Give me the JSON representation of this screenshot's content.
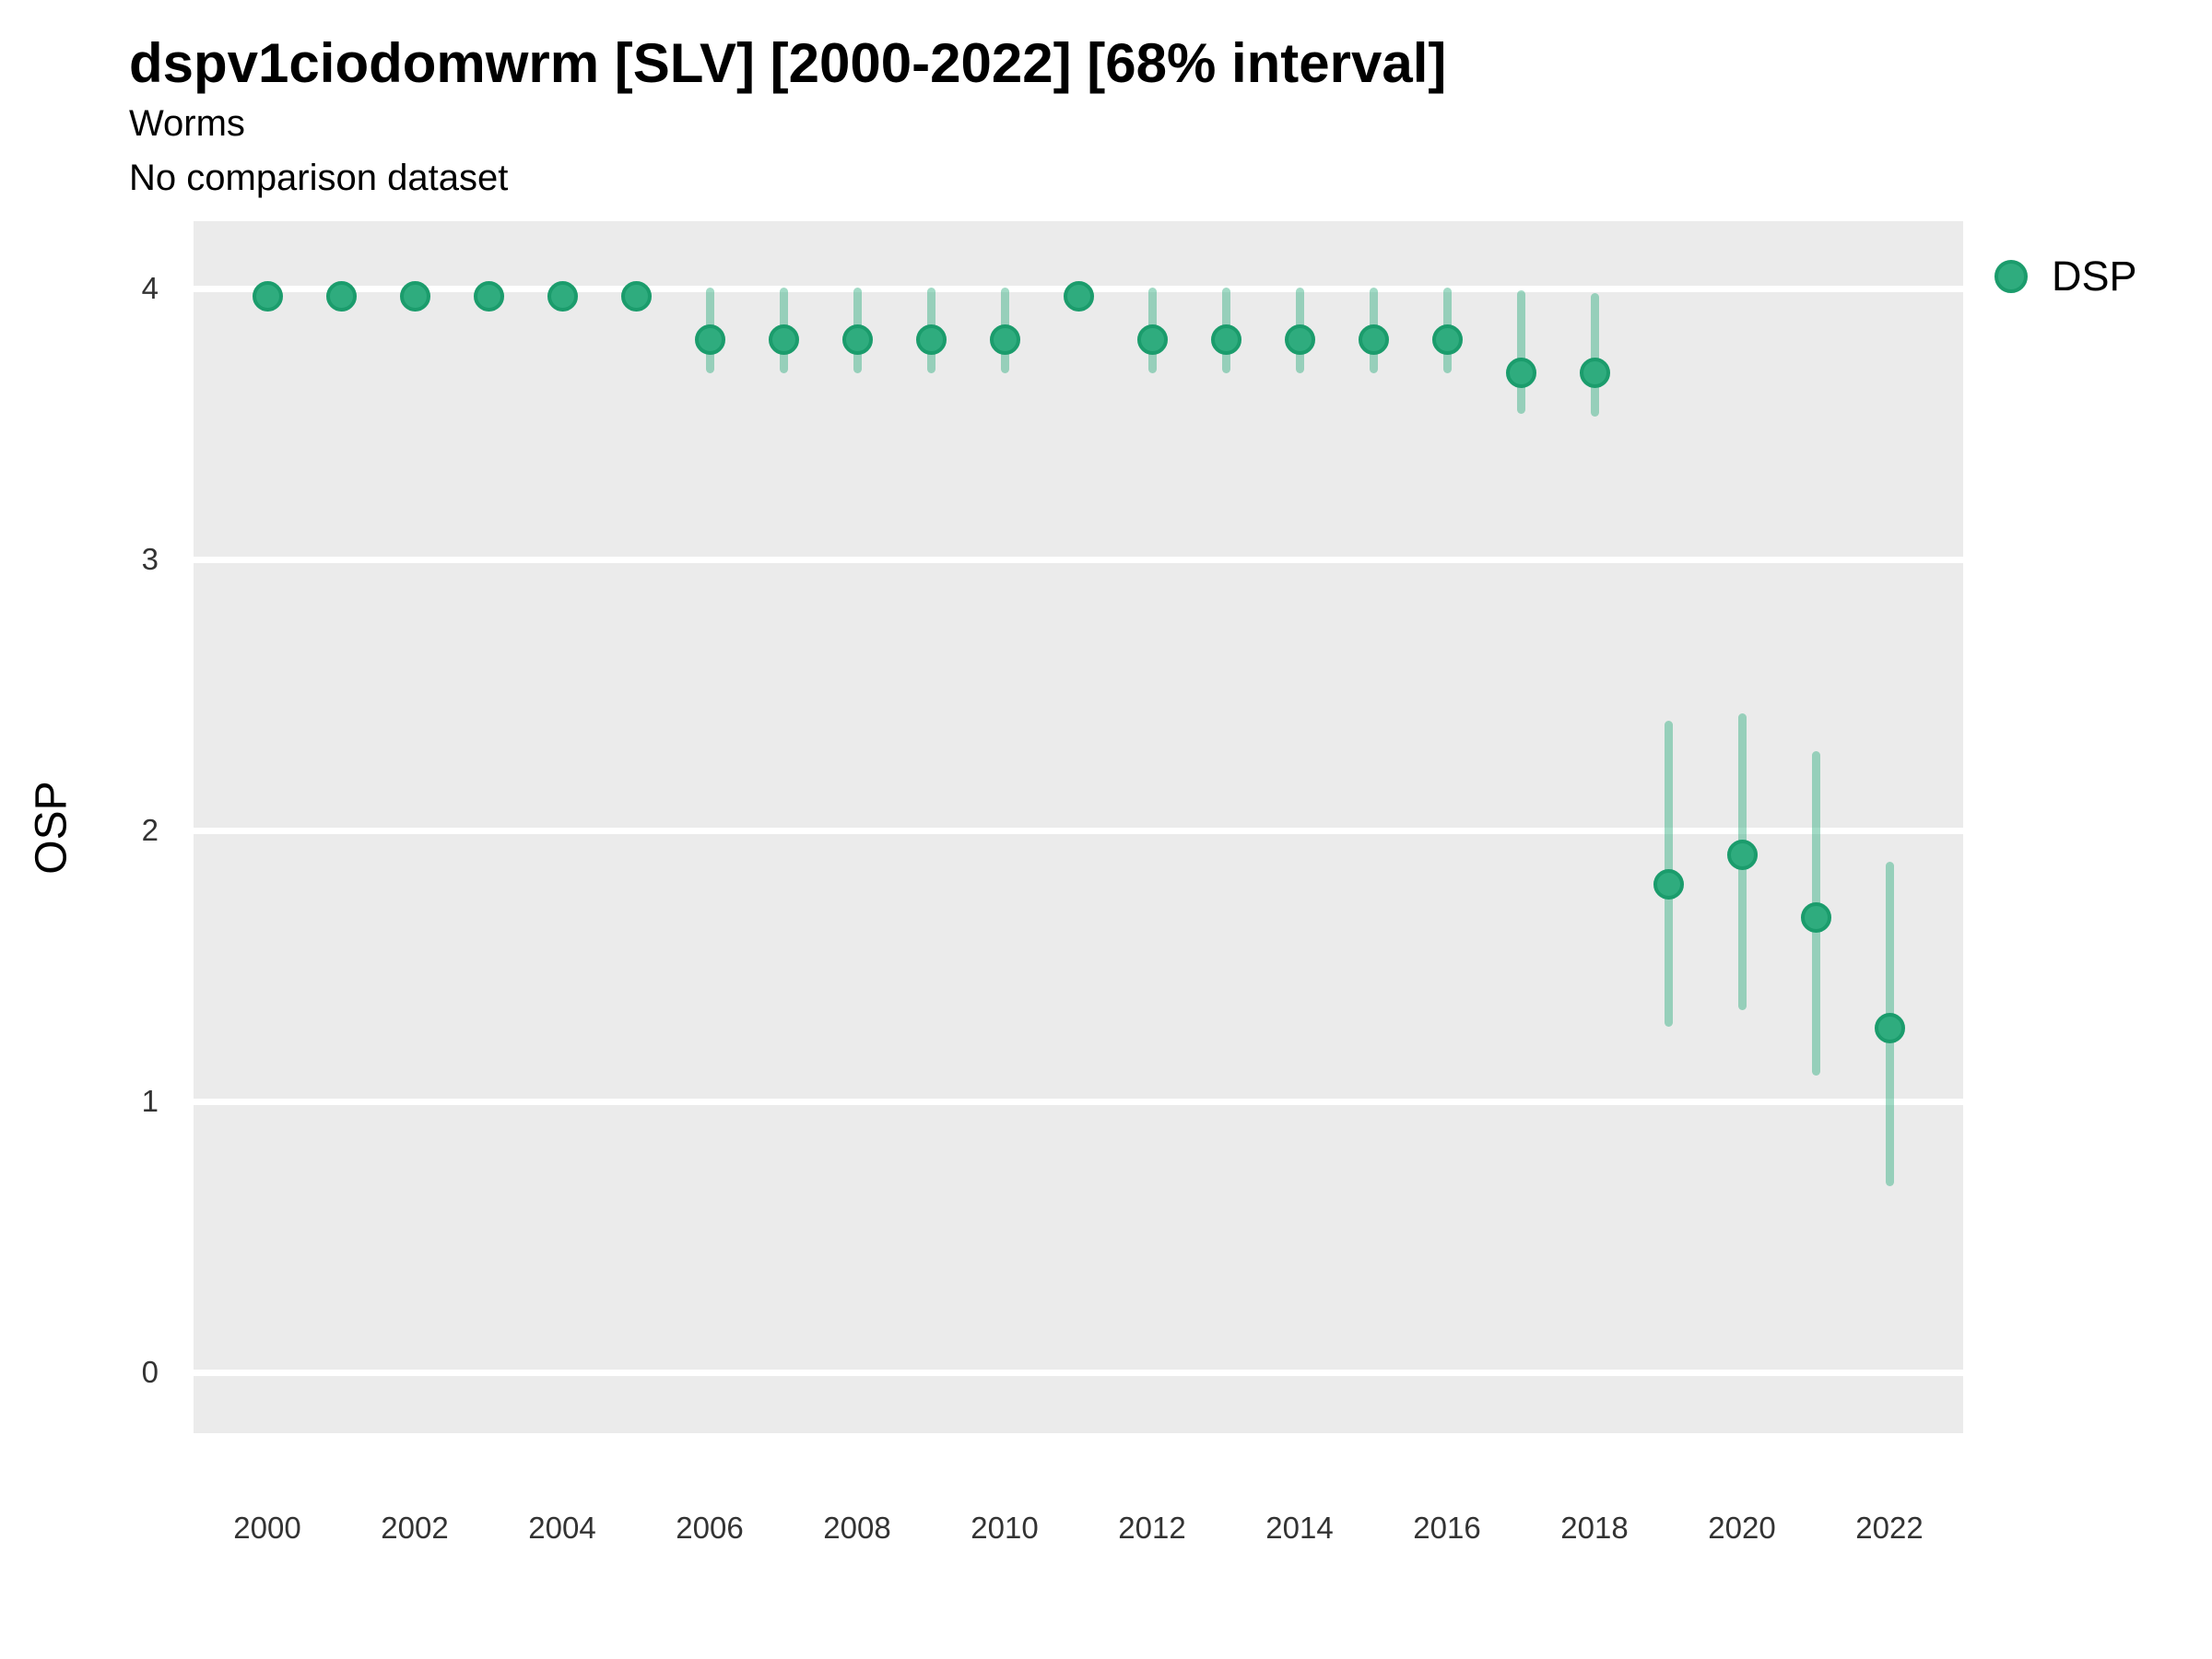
{
  "header": {
    "title": "dspv1ciodomwrm [SLV] [2000-2022] [68% interval]",
    "subtitle1": "Worms",
    "subtitle2": "No comparison dataset"
  },
  "legend": {
    "position": "right",
    "entries": [
      {
        "label": "DSP",
        "marker": "circle-icon",
        "color": "#2FAC7E"
      }
    ]
  },
  "colors": {
    "point_fill": "#2FAC7E",
    "point_stroke": "#1B9C6C",
    "interval_bar": "rgba(47,172,126,0.45)",
    "panel_background": "#EBEBEB",
    "gridline": "#FFFFFF",
    "tick_text": "#333333"
  },
  "chart_data": {
    "type": "scatter",
    "title": "dspv1ciodomwrm [SLV] [2000-2022] [68% interval]",
    "subtitle": [
      "Worms",
      "No comparison dataset"
    ],
    "interval": "68%",
    "xlabel": "",
    "ylabel": "OSP",
    "xlim": [
      1999,
      2023
    ],
    "ylim": [
      -0.22,
      4.25
    ],
    "y_ticks": [
      0,
      1,
      2,
      3,
      4
    ],
    "x_ticks": [
      2000,
      2002,
      2004,
      2006,
      2008,
      2010,
      2012,
      2014,
      2016,
      2018,
      2020,
      2022
    ],
    "grid": "horizontal-major-only",
    "legend_position": "right",
    "series": [
      {
        "name": "DSP",
        "points": [
          {
            "year": 2000,
            "value": 3.97,
            "lo": 3.97,
            "hi": 3.97
          },
          {
            "year": 2001,
            "value": 3.97,
            "lo": 3.97,
            "hi": 3.97
          },
          {
            "year": 2002,
            "value": 3.97,
            "lo": 3.97,
            "hi": 3.97
          },
          {
            "year": 2003,
            "value": 3.97,
            "lo": 3.97,
            "hi": 3.97
          },
          {
            "year": 2004,
            "value": 3.97,
            "lo": 3.97,
            "hi": 3.97
          },
          {
            "year": 2005,
            "value": 3.97,
            "lo": 3.97,
            "hi": 3.97
          },
          {
            "year": 2006,
            "value": 3.81,
            "lo": 3.7,
            "hi": 3.99
          },
          {
            "year": 2007,
            "value": 3.81,
            "lo": 3.7,
            "hi": 3.99
          },
          {
            "year": 2008,
            "value": 3.81,
            "lo": 3.7,
            "hi": 3.99
          },
          {
            "year": 2009,
            "value": 3.81,
            "lo": 3.7,
            "hi": 3.99
          },
          {
            "year": 2010,
            "value": 3.81,
            "lo": 3.7,
            "hi": 3.99
          },
          {
            "year": 2011,
            "value": 3.97,
            "lo": 3.97,
            "hi": 3.97
          },
          {
            "year": 2012,
            "value": 3.81,
            "lo": 3.7,
            "hi": 3.99
          },
          {
            "year": 2013,
            "value": 3.81,
            "lo": 3.7,
            "hi": 3.99
          },
          {
            "year": 2014,
            "value": 3.81,
            "lo": 3.7,
            "hi": 3.99
          },
          {
            "year": 2015,
            "value": 3.81,
            "lo": 3.7,
            "hi": 3.99
          },
          {
            "year": 2016,
            "value": 3.81,
            "lo": 3.7,
            "hi": 3.99
          },
          {
            "year": 2017,
            "value": 3.69,
            "lo": 3.55,
            "hi": 3.98
          },
          {
            "year": 2018,
            "value": 3.69,
            "lo": 3.54,
            "hi": 3.97
          },
          {
            "year": 2019,
            "value": 1.8,
            "lo": 1.29,
            "hi": 2.39
          },
          {
            "year": 2020,
            "value": 1.91,
            "lo": 1.35,
            "hi": 2.42
          },
          {
            "year": 2021,
            "value": 1.68,
            "lo": 1.11,
            "hi": 2.28
          },
          {
            "year": 2022,
            "value": 1.27,
            "lo": 0.7,
            "hi": 1.87
          }
        ]
      }
    ]
  }
}
